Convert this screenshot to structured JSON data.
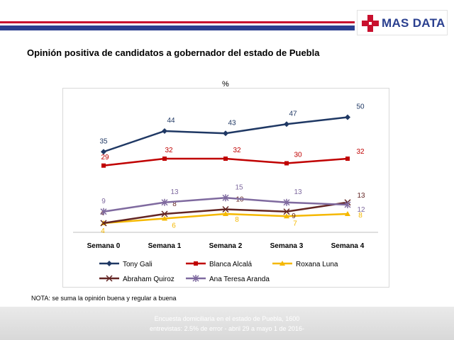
{
  "header": {
    "logo_text": "MAS DATA",
    "colors": {
      "red": "#c8102e",
      "blue": "#2a3f8f"
    }
  },
  "title": "Opinión positiva de candidatos a gobernador del estado de Puebla",
  "note": "NOTA: se suma la opinión buena y regular a buena",
  "footer": {
    "line1": "Encuesta domiciliaria en el estado de Puebla, 1600",
    "line2": "entrevistas: 2.5% de error - abril 29 a mayo 1 de 2016-"
  },
  "chart_data": {
    "type": "line",
    "ylabel": "%",
    "categories": [
      "Semana 0",
      "Semana 1",
      "Semana 2",
      "Semana 3",
      "Semana 4"
    ],
    "ylim": [
      0,
      60
    ],
    "grid": false,
    "legend_position": "bottom",
    "series": [
      {
        "name": "Tony Gali",
        "values": [
          35,
          44,
          43,
          47,
          50
        ],
        "color": "#1f3864",
        "marker": "diamond"
      },
      {
        "name": "Blanca Alcalá",
        "values": [
          29,
          32,
          32,
          30,
          32
        ],
        "color": "#c00000",
        "marker": "square"
      },
      {
        "name": "Roxana Luna",
        "values": [
          4,
          6,
          8,
          7,
          8
        ],
        "color": "#f5b800",
        "marker": "triangle"
      },
      {
        "name": "Abraham Quiroz",
        "values": [
          4,
          8,
          10,
          9,
          13
        ],
        "color": "#632523",
        "marker": "x"
      },
      {
        "name": "Ana Teresa Aranda",
        "values": [
          9,
          13,
          15,
          13,
          12
        ],
        "color": "#7f6a9f",
        "marker": "star"
      }
    ]
  }
}
